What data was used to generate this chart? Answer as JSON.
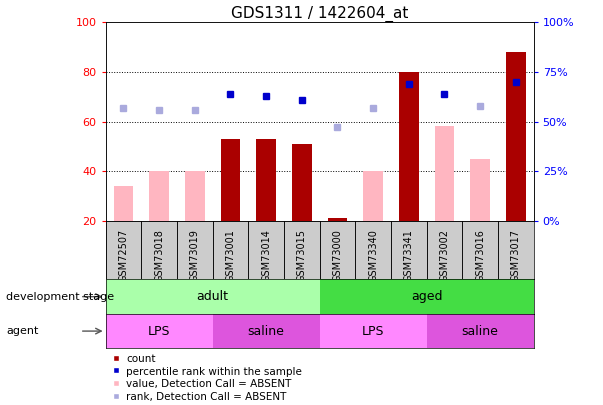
{
  "title": "GDS1311 / 1422604_at",
  "samples": [
    "GSM72507",
    "GSM73018",
    "GSM73019",
    "GSM73001",
    "GSM73014",
    "GSM73015",
    "GSM73000",
    "GSM73340",
    "GSM73341",
    "GSM73002",
    "GSM73016",
    "GSM73017"
  ],
  "count_values": [
    null,
    null,
    null,
    53,
    53,
    51,
    21,
    null,
    80,
    null,
    null,
    88
  ],
  "count_absent_values": [
    34,
    40,
    40,
    null,
    null,
    null,
    null,
    40,
    null,
    58,
    45,
    null
  ],
  "percentile_values": [
    null,
    null,
    null,
    64,
    63,
    61,
    null,
    null,
    69,
    64,
    null,
    70
  ],
  "percentile_absent_values": [
    57,
    56,
    56,
    null,
    null,
    null,
    47,
    57,
    null,
    null,
    58,
    null
  ],
  "development_stage": [
    {
      "label": "adult",
      "start": 0,
      "end": 6,
      "color": "#AAFFAA"
    },
    {
      "label": "aged",
      "start": 6,
      "end": 12,
      "color": "#44DD44"
    }
  ],
  "agent": [
    {
      "label": "LPS",
      "start": 0,
      "end": 3,
      "color": "#FF88FF"
    },
    {
      "label": "saline",
      "start": 3,
      "end": 6,
      "color": "#DD55DD"
    },
    {
      "label": "LPS",
      "start": 6,
      "end": 9,
      "color": "#FF88FF"
    },
    {
      "label": "saline",
      "start": 9,
      "end": 12,
      "color": "#DD55DD"
    }
  ],
  "ylim_left": [
    20,
    100
  ],
  "ylim_right": [
    0,
    100
  ],
  "yticks_left": [
    20,
    40,
    60,
    80,
    100
  ],
  "yticks_right_vals": [
    0,
    25,
    50,
    75,
    100
  ],
  "bar_color": "#AA0000",
  "bar_absent_color": "#FFB6C1",
  "dot_color": "#0000CC",
  "dot_absent_color": "#AAAADD",
  "xtick_bg_color": "#CCCCCC",
  "plot_bg_color": "#FFFFFF",
  "legend_labels": [
    "count",
    "percentile rank within the sample",
    "value, Detection Call = ABSENT",
    "rank, Detection Call = ABSENT"
  ]
}
